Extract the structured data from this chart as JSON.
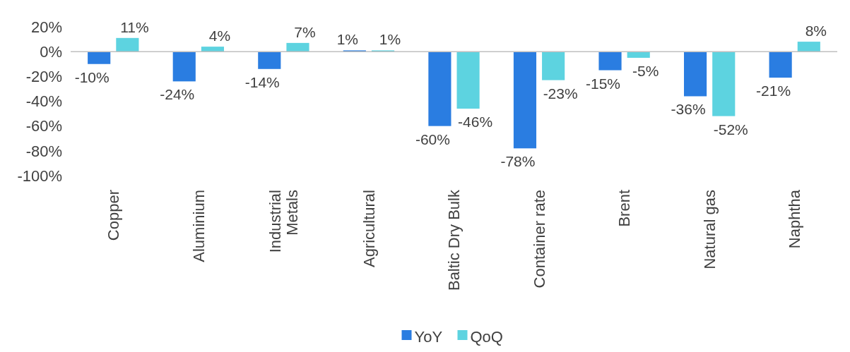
{
  "chart_data": {
    "type": "bar",
    "categories": [
      "Copper",
      "Aluminium",
      "Industrial Metals",
      "Agricultural",
      "Baltic Dry Bulk",
      "Container rate",
      "Brent",
      "Natural gas",
      "Naphtha"
    ],
    "series": [
      {
        "name": "YoY",
        "color": "#2a7de1",
        "values": [
          -10,
          -24,
          -14,
          1,
          -60,
          -78,
          -15,
          -36,
          -21
        ],
        "value_labels": [
          "-10%",
          "-24%",
          "-14%",
          "1%",
          "-60%",
          "-78%",
          "-15%",
          "-36%",
          "-21%"
        ]
      },
      {
        "name": "QoQ",
        "color": "#5dd3e0",
        "values": [
          11,
          4,
          7,
          1,
          -46,
          -23,
          -5,
          -52,
          8
        ],
        "value_labels": [
          "11%",
          "4%",
          "7%",
          "1%",
          "-46%",
          "-23%",
          "-5%",
          "-52%",
          "8%"
        ]
      }
    ],
    "ylim": [
      -100,
      20
    ],
    "yticks": [
      {
        "value": 20,
        "label": "20%"
      },
      {
        "value": 0,
        "label": "0%"
      },
      {
        "value": -20,
        "label": "-20%"
      },
      {
        "value": -40,
        "label": "-40%"
      },
      {
        "value": -60,
        "label": "-60%"
      },
      {
        "value": -80,
        "label": "-80%"
      },
      {
        "value": -100,
        "label": "-100%"
      }
    ],
    "legend": "bottom"
  }
}
